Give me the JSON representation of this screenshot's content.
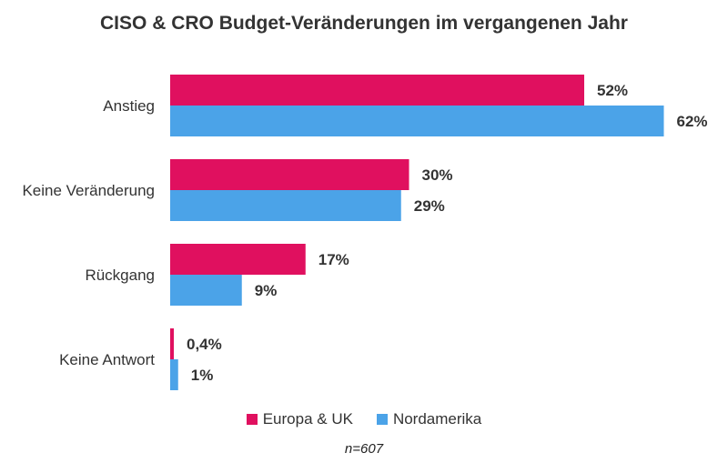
{
  "chart_data": {
    "type": "bar",
    "orientation": "horizontal",
    "title": "CISO & CRO Budget-Veränderungen im vergangenen Jahr",
    "categories": [
      "Anstieg",
      "Keine Veränderung",
      "Rückgang",
      "Keine Antwort"
    ],
    "series": [
      {
        "name": "Europa & UK",
        "color": "#E0105F",
        "values": [
          52,
          30,
          17,
          0.4
        ],
        "labels": [
          "52%",
          "30%",
          "17%",
          "0,4%"
        ]
      },
      {
        "name": "Nordamerika",
        "color": "#4BA3E8",
        "values": [
          62,
          29,
          9,
          1
        ],
        "labels": [
          "62%",
          "29%",
          "9%",
          "1%"
        ]
      }
    ],
    "xlim": [
      0,
      100
    ],
    "grid": false,
    "legend_position": "bottom",
    "note": "n=607"
  }
}
